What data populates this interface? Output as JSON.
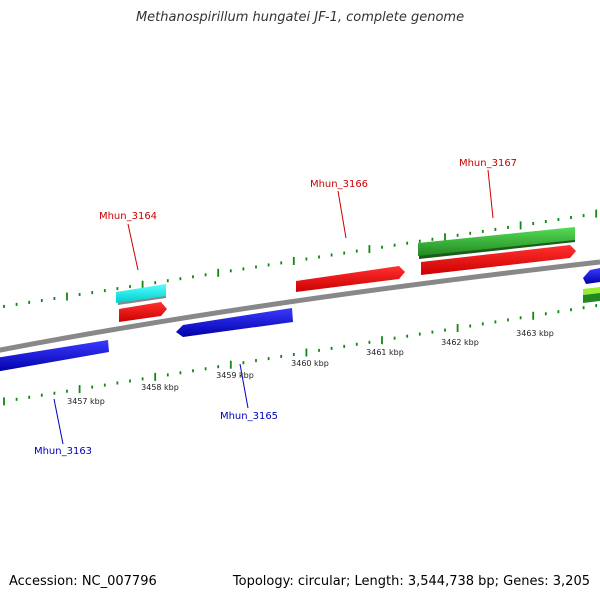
{
  "header": {
    "title": "Methanospirillum hungatei JF-1, complete genome"
  },
  "footer": {
    "accession": "Accession: NC_007796",
    "summary": "Topology: circular; Length: 3,544,738 bp; Genes: 3,205"
  },
  "colors": {
    "forward_cds": "#ff0000",
    "reverse_cds": "#0000ee",
    "rna": "#00ffff",
    "other_feature": "#33cc33",
    "backbone": "#888888",
    "tick": "#118811",
    "forward_label": "#cc0000",
    "reverse_label": "#0000bb"
  },
  "scale": {
    "unit": "kbp",
    "ticks": [
      {
        "kbp": 3457,
        "label": "3457 kbp"
      },
      {
        "kbp": 3458,
        "label": "3458 kbp"
      },
      {
        "kbp": 3459,
        "label": "3459 kbp"
      },
      {
        "kbp": 3460,
        "label": "3460 kbp"
      },
      {
        "kbp": 3461,
        "label": "3461 kbp"
      },
      {
        "kbp": 3462,
        "label": "3462 kbp"
      },
      {
        "kbp": 3463,
        "label": "3463 kbp"
      }
    ]
  },
  "genes": [
    {
      "name": "Mhun_3163",
      "strand": "reverse",
      "color_key": "reverse_label"
    },
    {
      "name": "Mhun_3164",
      "strand": "forward",
      "color_key": "forward_label"
    },
    {
      "name": "Mhun_3165",
      "strand": "reverse",
      "color_key": "reverse_label"
    },
    {
      "name": "Mhun_3166",
      "strand": "forward",
      "color_key": "forward_label"
    },
    {
      "name": "Mhun_3167",
      "strand": "forward",
      "color_key": "forward_label"
    }
  ]
}
